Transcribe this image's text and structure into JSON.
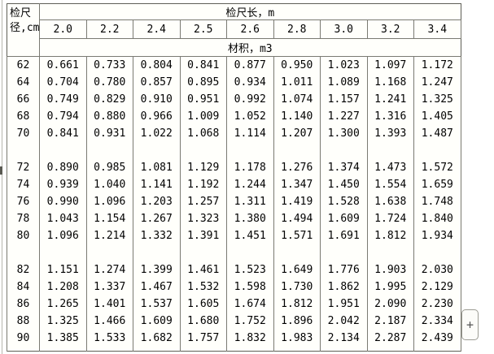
{
  "table": {
    "corner_header_line1": "检尺",
    "corner_header_line2": "径,cm",
    "top_header": "检尺长，m",
    "sub_header": "材积，m3",
    "lengths": [
      "2.0",
      "2.2",
      "2.4",
      "2.5",
      "2.6",
      "2.8",
      "3.0",
      "3.2",
      "3.4"
    ],
    "blocks": [
      [
        {
          "d": "62",
          "v": [
            "0.661",
            "0.733",
            "0.804",
            "0.841",
            "0.877",
            "0.950",
            "1.023",
            "1.097",
            "1.172"
          ]
        },
        {
          "d": "64",
          "v": [
            "0.704",
            "0.780",
            "0.857",
            "0.895",
            "0.934",
            "1.011",
            "1.089",
            "1.168",
            "1.247"
          ]
        },
        {
          "d": "66",
          "v": [
            "0.749",
            "0.829",
            "0.910",
            "0.951",
            "0.992",
            "1.074",
            "1.157",
            "1.241",
            "1.325"
          ]
        },
        {
          "d": "68",
          "v": [
            "0.794",
            "0.880",
            "0.966",
            "1.009",
            "1.052",
            "1.140",
            "1.227",
            "1.316",
            "1.405"
          ]
        },
        {
          "d": "70",
          "v": [
            "0.841",
            "0.931",
            "1.022",
            "1.068",
            "1.114",
            "1.207",
            "1.300",
            "1.393",
            "1.487"
          ]
        }
      ],
      [
        {
          "d": "72",
          "v": [
            "0.890",
            "0.985",
            "1.081",
            "1.129",
            "1.178",
            "1.276",
            "1.374",
            "1.473",
            "1.572"
          ]
        },
        {
          "d": "74",
          "v": [
            "0.939",
            "1.040",
            "1.141",
            "1.192",
            "1.244",
            "1.347",
            "1.450",
            "1.554",
            "1.659"
          ]
        },
        {
          "d": "76",
          "v": [
            "0.990",
            "1.096",
            "1.203",
            "1.257",
            "1.311",
            "1.419",
            "1.528",
            "1.638",
            "1.748"
          ]
        },
        {
          "d": "78",
          "v": [
            "1.043",
            "1.154",
            "1.267",
            "1.323",
            "1.380",
            "1.494",
            "1.609",
            "1.724",
            "1.840"
          ]
        },
        {
          "d": "80",
          "v": [
            "1.096",
            "1.214",
            "1.332",
            "1.391",
            "1.451",
            "1.571",
            "1.691",
            "1.812",
            "1.934"
          ]
        }
      ],
      [
        {
          "d": "82",
          "v": [
            "1.151",
            "1.274",
            "1.399",
            "1.461",
            "1.523",
            "1.649",
            "1.776",
            "1.903",
            "2.030"
          ]
        },
        {
          "d": "84",
          "v": [
            "1.208",
            "1.337",
            "1.467",
            "1.532",
            "1.598",
            "1.730",
            "1.862",
            "1.995",
            "2.129"
          ]
        },
        {
          "d": "86",
          "v": [
            "1.265",
            "1.401",
            "1.537",
            "1.605",
            "1.674",
            "1.812",
            "1.951",
            "2.090",
            "2.230"
          ]
        },
        {
          "d": "88",
          "v": [
            "1.325",
            "1.466",
            "1.609",
            "1.680",
            "1.752",
            "1.896",
            "2.042",
            "2.187",
            "2.334"
          ]
        },
        {
          "d": "90",
          "v": [
            "1.385",
            "1.533",
            "1.682",
            "1.757",
            "1.832",
            "1.983",
            "2.134",
            "2.287",
            "2.439"
          ]
        }
      ]
    ]
  },
  "controls": {
    "plus_label": "+"
  },
  "colors": {
    "table_background": "#fffffb",
    "border_inner": "#7a7a72",
    "border_outer": "#5f5f57",
    "text": "#000000"
  }
}
